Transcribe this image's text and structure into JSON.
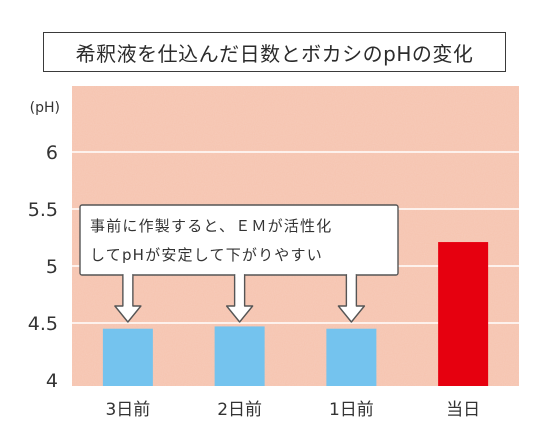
{
  "chart_data": {
    "type": "bar",
    "title": "希釈液を仕込んだ日数とボカシのpHの変化",
    "ylabel": "(pH)",
    "xlabel": "",
    "ylim": [
      4,
      6.5
    ],
    "yticks": [
      {
        "value": 4,
        "label": "4"
      },
      {
        "value": 4.5,
        "label": "4.5"
      },
      {
        "value": 5,
        "label": "5"
      },
      {
        "value": 5.5,
        "label": "5.5"
      },
      {
        "value": 6,
        "label": "6"
      }
    ],
    "categories": [
      "3日前",
      "2日前",
      "1日前",
      "当日"
    ],
    "values": [
      4.45,
      4.47,
      4.45,
      5.21
    ],
    "bar_colors": [
      "#74c3ee",
      "#74c3ee",
      "#74c3ee",
      "#e6000f"
    ],
    "grid": true,
    "annotation": {
      "lines": [
        "事前に作製すると、ＥＭが活性化",
        "してpHが安定して下がりやすい"
      ],
      "arrows_to": [
        "3日前",
        "2日前",
        "1日前"
      ]
    }
  },
  "colors": {
    "plot_background": "#f6c3ae",
    "gridline": "#ffffff",
    "axis_text": "#333333"
  }
}
